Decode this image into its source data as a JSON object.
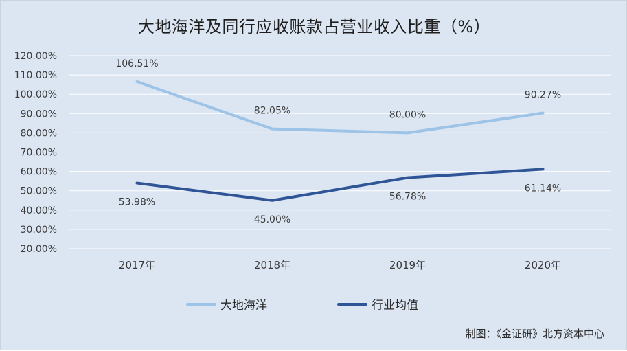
{
  "chart_data": {
    "type": "line",
    "title": "大地海洋及同行应收账款占营业收入比重（%）",
    "categories": [
      "2017年",
      "2018年",
      "2019年",
      "2020年"
    ],
    "series": [
      {
        "name": "大地海洋",
        "values": [
          106.51,
          82.05,
          80.0,
          90.27
        ],
        "labels": [
          "106.51%",
          "82.05%",
          "80.00%",
          "90.27%"
        ],
        "label_position": "above",
        "color": "#9dc3e6"
      },
      {
        "name": "行业均值",
        "values": [
          53.98,
          45.0,
          56.78,
          61.14
        ],
        "labels": [
          "53.98%",
          "45.00%",
          "56.78%",
          "61.14%"
        ],
        "label_position": "below",
        "color": "#2f5597"
      }
    ],
    "ylim": [
      20,
      120
    ],
    "ystep": 10,
    "yticks": [
      "20.00%",
      "30.00%",
      "40.00%",
      "50.00%",
      "60.00%",
      "70.00%",
      "80.00%",
      "90.00%",
      "100.00%",
      "110.00%",
      "120.00%"
    ],
    "xlabel": "",
    "ylabel": "",
    "grid": true,
    "legend": "bottom-center"
  },
  "source": "制图：《金证研》北方资本中心"
}
